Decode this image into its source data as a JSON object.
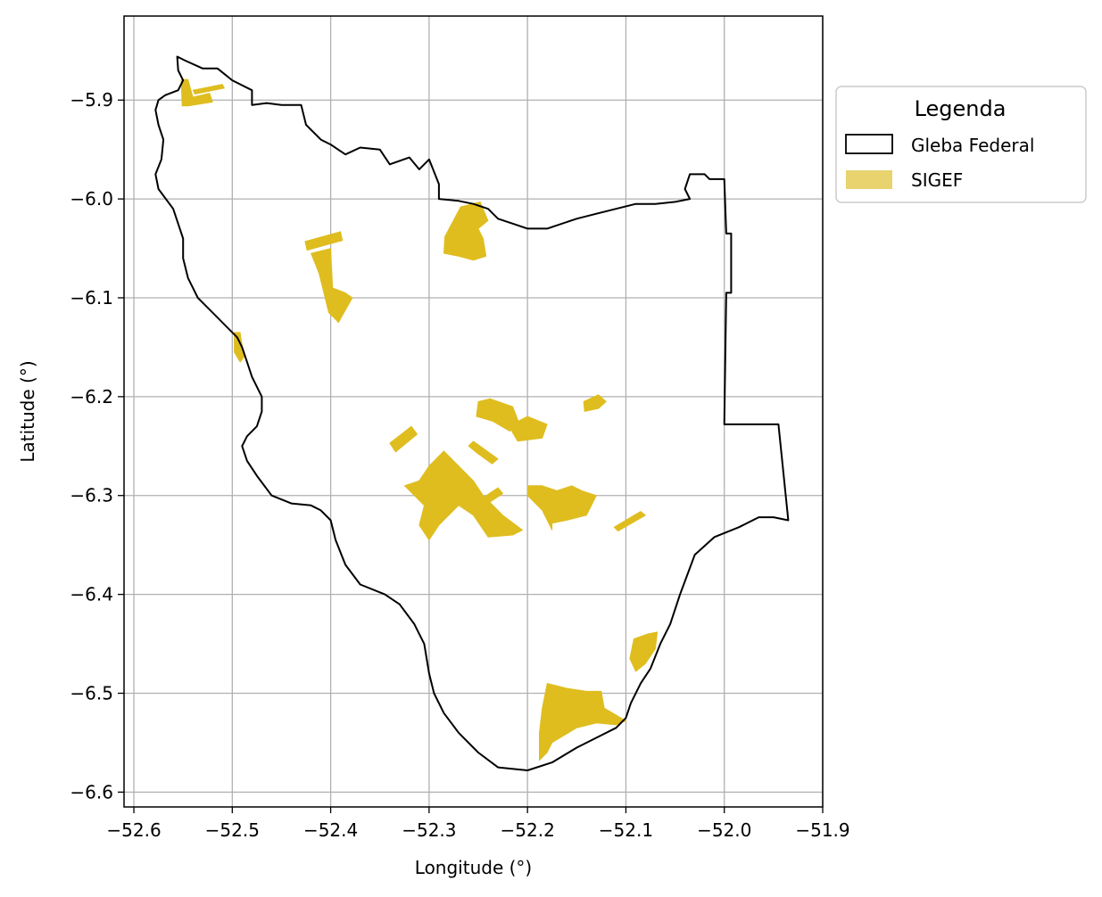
{
  "chart_data": {
    "type": "map",
    "xlabel": "Longitude (°)",
    "ylabel": "Latitude (°)",
    "xlim": [
      -52.61,
      -51.9
    ],
    "ylim": [
      -6.615,
      -5.815
    ],
    "xticks": [
      -52.6,
      -52.5,
      -52.4,
      -52.3,
      -52.2,
      -52.1,
      -52.0,
      -51.9
    ],
    "xtick_labels": [
      "−52.6",
      "−52.5",
      "−52.4",
      "−52.3",
      "−52.2",
      "−52.1",
      "−52.0",
      "−51.9"
    ],
    "yticks": [
      -5.9,
      -6.0,
      -6.1,
      -6.2,
      -6.3,
      -6.4,
      -6.5,
      -6.6
    ],
    "ytick_labels": [
      "−5.9",
      "−6.0",
      "−6.1",
      "−6.2",
      "−6.3",
      "−6.4",
      "−6.5",
      "−6.6"
    ],
    "grid": true,
    "legend": {
      "title": "Legenda",
      "placement": "outside-upper-right",
      "entries": [
        {
          "label": "Gleba Federal",
          "style": "outline",
          "color": "#000000"
        },
        {
          "label": "SIGEF",
          "style": "fill",
          "color": "#e8d36e"
        }
      ]
    },
    "colors": {
      "boundary": "#000000",
      "sigef": "#dfbd1f",
      "grid": "#b0b0b0"
    },
    "gleba_boundary": [
      [
        -52.556,
        -5.856
      ],
      [
        -52.548,
        -5.86
      ],
      [
        -52.53,
        -5.868
      ],
      [
        -52.515,
        -5.868
      ],
      [
        -52.5,
        -5.88
      ],
      [
        -52.48,
        -5.89
      ],
      [
        -52.48,
        -5.905
      ],
      [
        -52.465,
        -5.903
      ],
      [
        -52.45,
        -5.905
      ],
      [
        -52.43,
        -5.905
      ],
      [
        -52.425,
        -5.925
      ],
      [
        -52.41,
        -5.94
      ],
      [
        -52.4,
        -5.945
      ],
      [
        -52.385,
        -5.955
      ],
      [
        -52.37,
        -5.948
      ],
      [
        -52.35,
        -5.95
      ],
      [
        -52.34,
        -5.965
      ],
      [
        -52.32,
        -5.958
      ],
      [
        -52.31,
        -5.97
      ],
      [
        -52.3,
        -5.96
      ],
      [
        -52.29,
        -5.985
      ],
      [
        -52.29,
        -6.0
      ],
      [
        -52.27,
        -6.002
      ],
      [
        -52.255,
        -6.005
      ],
      [
        -52.24,
        -6.01
      ],
      [
        -52.23,
        -6.02
      ],
      [
        -52.215,
        -6.025
      ],
      [
        -52.2,
        -6.03
      ],
      [
        -52.18,
        -6.03
      ],
      [
        -52.15,
        -6.02
      ],
      [
        -52.13,
        -6.015
      ],
      [
        -52.11,
        -6.01
      ],
      [
        -52.09,
        -6.005
      ],
      [
        -52.07,
        -6.005
      ],
      [
        -52.05,
        -6.003
      ],
      [
        -52.035,
        -6.0
      ],
      [
        -52.04,
        -5.99
      ],
      [
        -52.035,
        -5.975
      ],
      [
        -52.02,
        -5.975
      ],
      [
        -52.015,
        -5.98
      ],
      [
        -52.0,
        -5.98
      ],
      [
        -51.998,
        -6.035
      ],
      [
        -51.993,
        -6.035
      ],
      [
        -51.993,
        -6.095
      ],
      [
        -51.998,
        -6.095
      ],
      [
        -52.0,
        -6.228
      ],
      [
        -51.945,
        -6.228
      ],
      [
        -51.935,
        -6.325
      ],
      [
        -51.95,
        -6.322
      ],
      [
        -51.965,
        -6.322
      ],
      [
        -51.985,
        -6.332
      ],
      [
        -52.01,
        -6.342
      ],
      [
        -52.03,
        -6.36
      ],
      [
        -52.045,
        -6.4
      ],
      [
        -52.055,
        -6.43
      ],
      [
        -52.065,
        -6.45
      ],
      [
        -52.075,
        -6.475
      ],
      [
        -52.085,
        -6.49
      ],
      [
        -52.095,
        -6.51
      ],
      [
        -52.1,
        -6.525
      ],
      [
        -52.11,
        -6.535
      ],
      [
        -52.13,
        -6.545
      ],
      [
        -52.15,
        -6.555
      ],
      [
        -52.175,
        -6.57
      ],
      [
        -52.2,
        -6.578
      ],
      [
        -52.23,
        -6.575
      ],
      [
        -52.25,
        -6.56
      ],
      [
        -52.27,
        -6.54
      ],
      [
        -52.285,
        -6.52
      ],
      [
        -52.295,
        -6.5
      ],
      [
        -52.3,
        -6.48
      ],
      [
        -52.305,
        -6.45
      ],
      [
        -52.315,
        -6.43
      ],
      [
        -52.33,
        -6.41
      ],
      [
        -52.345,
        -6.4
      ],
      [
        -52.37,
        -6.39
      ],
      [
        -52.385,
        -6.37
      ],
      [
        -52.395,
        -6.345
      ],
      [
        -52.4,
        -6.325
      ],
      [
        -52.41,
        -6.315
      ],
      [
        -52.42,
        -6.31
      ],
      [
        -52.44,
        -6.308
      ],
      [
        -52.46,
        -6.3
      ],
      [
        -52.475,
        -6.28
      ],
      [
        -52.485,
        -6.265
      ],
      [
        -52.49,
        -6.25
      ],
      [
        -52.485,
        -6.24
      ],
      [
        -52.475,
        -6.23
      ],
      [
        -52.47,
        -6.215
      ],
      [
        -52.47,
        -6.2
      ],
      [
        -52.475,
        -6.19
      ],
      [
        -52.48,
        -6.18
      ],
      [
        -52.485,
        -6.165
      ],
      [
        -52.49,
        -6.15
      ],
      [
        -52.495,
        -6.14
      ],
      [
        -52.5,
        -6.135
      ],
      [
        -52.505,
        -6.13
      ],
      [
        -52.515,
        -6.12
      ],
      [
        -52.525,
        -6.11
      ],
      [
        -52.535,
        -6.1
      ],
      [
        -52.545,
        -6.08
      ],
      [
        -52.55,
        -6.06
      ],
      [
        -52.55,
        -6.04
      ],
      [
        -52.56,
        -6.01
      ],
      [
        -52.575,
        -5.99
      ],
      [
        -52.578,
        -5.975
      ],
      [
        -52.572,
        -5.96
      ],
      [
        -52.57,
        -5.94
      ],
      [
        -52.575,
        -5.925
      ],
      [
        -52.578,
        -5.91
      ],
      [
        -52.575,
        -5.9
      ],
      [
        -52.568,
        -5.895
      ],
      [
        -52.555,
        -5.89
      ],
      [
        -52.55,
        -5.88
      ],
      [
        -52.555,
        -5.87
      ],
      [
        -52.556,
        -5.856
      ]
    ],
    "sigef_parcels": [
      [
        [
          -52.552,
          -5.879
        ],
        [
          -52.545,
          -5.879
        ],
        [
          -52.54,
          -5.897
        ],
        [
          -52.523,
          -5.893
        ],
        [
          -52.52,
          -5.902
        ],
        [
          -52.545,
          -5.906
        ],
        [
          -52.551,
          -5.906
        ]
      ],
      [
        [
          -52.54,
          -5.89
        ],
        [
          -52.51,
          -5.884
        ],
        [
          -52.508,
          -5.888
        ],
        [
          -52.538,
          -5.894
        ]
      ],
      [
        [
          -52.498,
          -6.135
        ],
        [
          -52.492,
          -6.135
        ],
        [
          -52.488,
          -6.16
        ],
        [
          -52.492,
          -6.165
        ],
        [
          -52.498,
          -6.155
        ]
      ],
      [
        [
          -52.426,
          -6.043
        ],
        [
          -52.39,
          -6.033
        ],
        [
          -52.388,
          -6.042
        ],
        [
          -52.424,
          -6.052
        ]
      ],
      [
        [
          -52.4,
          -6.05
        ],
        [
          -52.42,
          -6.055
        ],
        [
          -52.412,
          -6.075
        ],
        [
          -52.402,
          -6.115
        ],
        [
          -52.392,
          -6.125
        ],
        [
          -52.378,
          -6.1
        ],
        [
          -52.385,
          -6.095
        ],
        [
          -52.398,
          -6.09
        ]
      ],
      [
        [
          -52.34,
          -6.247
        ],
        [
          -52.318,
          -6.23
        ],
        [
          -52.312,
          -6.238
        ],
        [
          -52.334,
          -6.256
        ]
      ],
      [
        [
          -52.284,
          -6.038
        ],
        [
          -52.268,
          -6.008
        ],
        [
          -52.248,
          -6.003
        ],
        [
          -52.24,
          -6.022
        ],
        [
          -52.25,
          -6.03
        ],
        [
          -52.245,
          -6.04
        ],
        [
          -52.242,
          -6.058
        ],
        [
          -52.255,
          -6.062
        ],
        [
          -52.27,
          -6.058
        ],
        [
          -52.285,
          -6.055
        ]
      ],
      [
        [
          -52.3,
          -6.27
        ],
        [
          -52.285,
          -6.255
        ],
        [
          -52.27,
          -6.27
        ],
        [
          -52.255,
          -6.285
        ],
        [
          -52.245,
          -6.3
        ],
        [
          -52.225,
          -6.32
        ],
        [
          -52.205,
          -6.335
        ],
        [
          -52.215,
          -6.34
        ],
        [
          -52.24,
          -6.342
        ],
        [
          -52.255,
          -6.32
        ],
        [
          -52.27,
          -6.31
        ],
        [
          -52.29,
          -6.33
        ],
        [
          -52.3,
          -6.345
        ],
        [
          -52.31,
          -6.33
        ],
        [
          -52.305,
          -6.31
        ],
        [
          -52.315,
          -6.3
        ],
        [
          -52.325,
          -6.29
        ],
        [
          -52.31,
          -6.285
        ]
      ],
      [
        [
          -52.245,
          -6.302
        ],
        [
          -52.23,
          -6.292
        ],
        [
          -52.225,
          -6.298
        ],
        [
          -52.24,
          -6.308
        ]
      ],
      [
        [
          -52.26,
          -6.25
        ],
        [
          -52.25,
          -6.258
        ],
        [
          -52.236,
          -6.268
        ],
        [
          -52.23,
          -6.263
        ],
        [
          -52.248,
          -6.25
        ],
        [
          -52.255,
          -6.245
        ]
      ],
      [
        [
          -52.25,
          -6.205
        ],
        [
          -52.238,
          -6.202
        ],
        [
          -52.215,
          -6.21
        ],
        [
          -52.208,
          -6.228
        ],
        [
          -52.218,
          -6.235
        ],
        [
          -52.235,
          -6.225
        ],
        [
          -52.252,
          -6.22
        ]
      ],
      [
        [
          -52.21,
          -6.225
        ],
        [
          -52.2,
          -6.22
        ],
        [
          -52.18,
          -6.228
        ],
        [
          -52.185,
          -6.242
        ],
        [
          -52.21,
          -6.245
        ],
        [
          -52.216,
          -6.235
        ]
      ],
      [
        [
          -52.2,
          -6.29
        ],
        [
          -52.185,
          -6.29
        ],
        [
          -52.17,
          -6.295
        ],
        [
          -52.155,
          -6.29
        ],
        [
          -52.145,
          -6.295
        ],
        [
          -52.13,
          -6.3
        ],
        [
          -52.14,
          -6.32
        ],
        [
          -52.16,
          -6.325
        ],
        [
          -52.175,
          -6.328
        ],
        [
          -52.175,
          -6.335
        ],
        [
          -52.185,
          -6.315
        ],
        [
          -52.2,
          -6.3
        ]
      ],
      [
        [
          -52.143,
          -6.205
        ],
        [
          -52.128,
          -6.198
        ],
        [
          -52.12,
          -6.205
        ],
        [
          -52.128,
          -6.212
        ],
        [
          -52.142,
          -6.215
        ]
      ],
      [
        [
          -52.112,
          -6.332
        ],
        [
          -52.085,
          -6.316
        ],
        [
          -52.08,
          -6.32
        ],
        [
          -52.108,
          -6.336
        ]
      ],
      [
        [
          -52.092,
          -6.445
        ],
        [
          -52.078,
          -6.44
        ],
        [
          -52.068,
          -6.438
        ],
        [
          -52.07,
          -6.455
        ],
        [
          -52.08,
          -6.47
        ],
        [
          -52.09,
          -6.478
        ],
        [
          -52.096,
          -6.465
        ]
      ],
      [
        [
          -52.18,
          -6.49
        ],
        [
          -52.16,
          -6.495
        ],
        [
          -52.14,
          -6.498
        ],
        [
          -52.125,
          -6.498
        ],
        [
          -52.122,
          -6.515
        ],
        [
          -52.11,
          -6.522
        ],
        [
          -52.1,
          -6.528
        ],
        [
          -52.11,
          -6.532
        ],
        [
          -52.13,
          -6.53
        ],
        [
          -52.15,
          -6.535
        ],
        [
          -52.175,
          -6.55
        ],
        [
          -52.18,
          -6.56
        ],
        [
          -52.188,
          -6.568
        ],
        [
          -52.188,
          -6.54
        ],
        [
          -52.185,
          -6.515
        ]
      ]
    ]
  }
}
